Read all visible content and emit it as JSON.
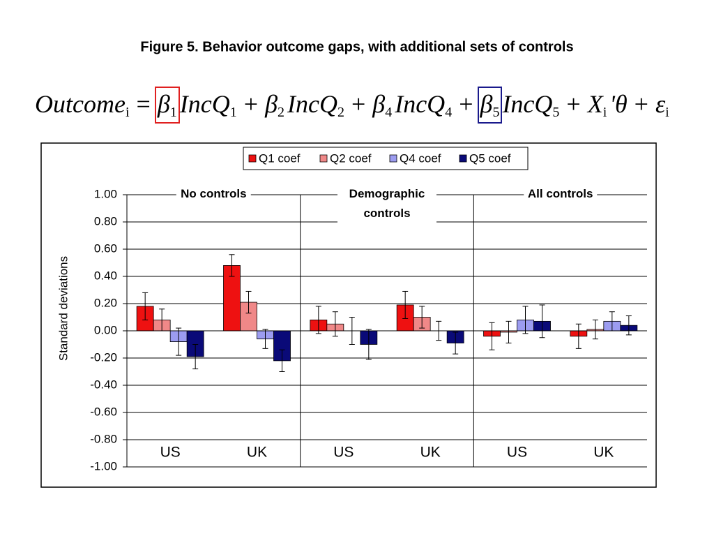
{
  "chart_data": {
    "type": "bar",
    "title": "Figure 5. Behavior outcome gaps, with additional sets of controls",
    "equation": [
      {
        "text": "Outcome",
        "sub": "i"
      },
      {
        "text": "="
      },
      {
        "text": "β",
        "sub": "1",
        "box": "#e02020"
      },
      {
        "text": "IncQ",
        "sub": "1"
      },
      {
        "text": "+"
      },
      {
        "text": "β",
        "sub": "2"
      },
      {
        "text": "IncQ",
        "sub": "2"
      },
      {
        "text": "+"
      },
      {
        "text": "β",
        "sub": "4"
      },
      {
        "text": "IncQ",
        "sub": "4"
      },
      {
        "text": "+"
      },
      {
        "text": "β",
        "sub": "5",
        "box": "#1a1a8c"
      },
      {
        "text": "IncQ",
        "sub": "5"
      },
      {
        "text": "+"
      },
      {
        "text": "X",
        "sub": "i"
      },
      {
        "text": "'θ"
      },
      {
        "text": "+"
      },
      {
        "text": "ε",
        "sub": "i"
      }
    ],
    "ylabel": "Standard deviations",
    "panels": [
      "No controls",
      "Demographic controls",
      "All controls"
    ],
    "categories": [
      "US",
      "UK",
      "US",
      "UK",
      "US",
      "UK"
    ],
    "series": [
      {
        "name": "Q1 coef",
        "color": "#ee1111",
        "values": [
          0.18,
          0.48,
          0.08,
          0.19,
          -0.04,
          -0.04
        ],
        "errors": [
          0.1,
          0.08,
          0.1,
          0.1,
          0.1,
          0.09
        ]
      },
      {
        "name": "Q2 coef",
        "color": "#f08888",
        "values": [
          0.08,
          0.21,
          0.05,
          0.1,
          -0.01,
          0.01
        ],
        "errors": [
          0.08,
          0.08,
          0.09,
          0.08,
          0.08,
          0.07
        ]
      },
      {
        "name": "Q4 coef",
        "color": "#9c9cf0",
        "values": [
          -0.08,
          -0.06,
          0.0,
          0.0,
          0.08,
          0.07
        ],
        "errors": [
          0.1,
          0.07,
          0.1,
          0.07,
          0.1,
          0.07
        ]
      },
      {
        "name": "Q5 coef",
        "color": "#0a0a78",
        "values": [
          -0.19,
          -0.22,
          -0.1,
          -0.09,
          0.07,
          0.04
        ],
        "errors": [
          0.09,
          0.08,
          0.11,
          0.08,
          0.12,
          0.07
        ]
      }
    ],
    "ylim": [
      -1,
      1
    ],
    "yticks": [
      {
        "value": -1,
        "label": "-1.00"
      },
      {
        "value": -0.8,
        "label": "-0.80"
      },
      {
        "value": -0.6,
        "label": "-0.60"
      },
      {
        "value": -0.4,
        "label": "-0.40"
      },
      {
        "value": -0.2,
        "label": "-0.20"
      },
      {
        "value": 0,
        "label": "0.00"
      },
      {
        "value": 0.2,
        "label": "0.20"
      },
      {
        "value": 0.4,
        "label": "0.40"
      },
      {
        "value": 0.6,
        "label": "0.60"
      },
      {
        "value": 0.8,
        "label": "0.80"
      },
      {
        "value": 1,
        "label": "1.00"
      }
    ],
    "grid": true
  }
}
